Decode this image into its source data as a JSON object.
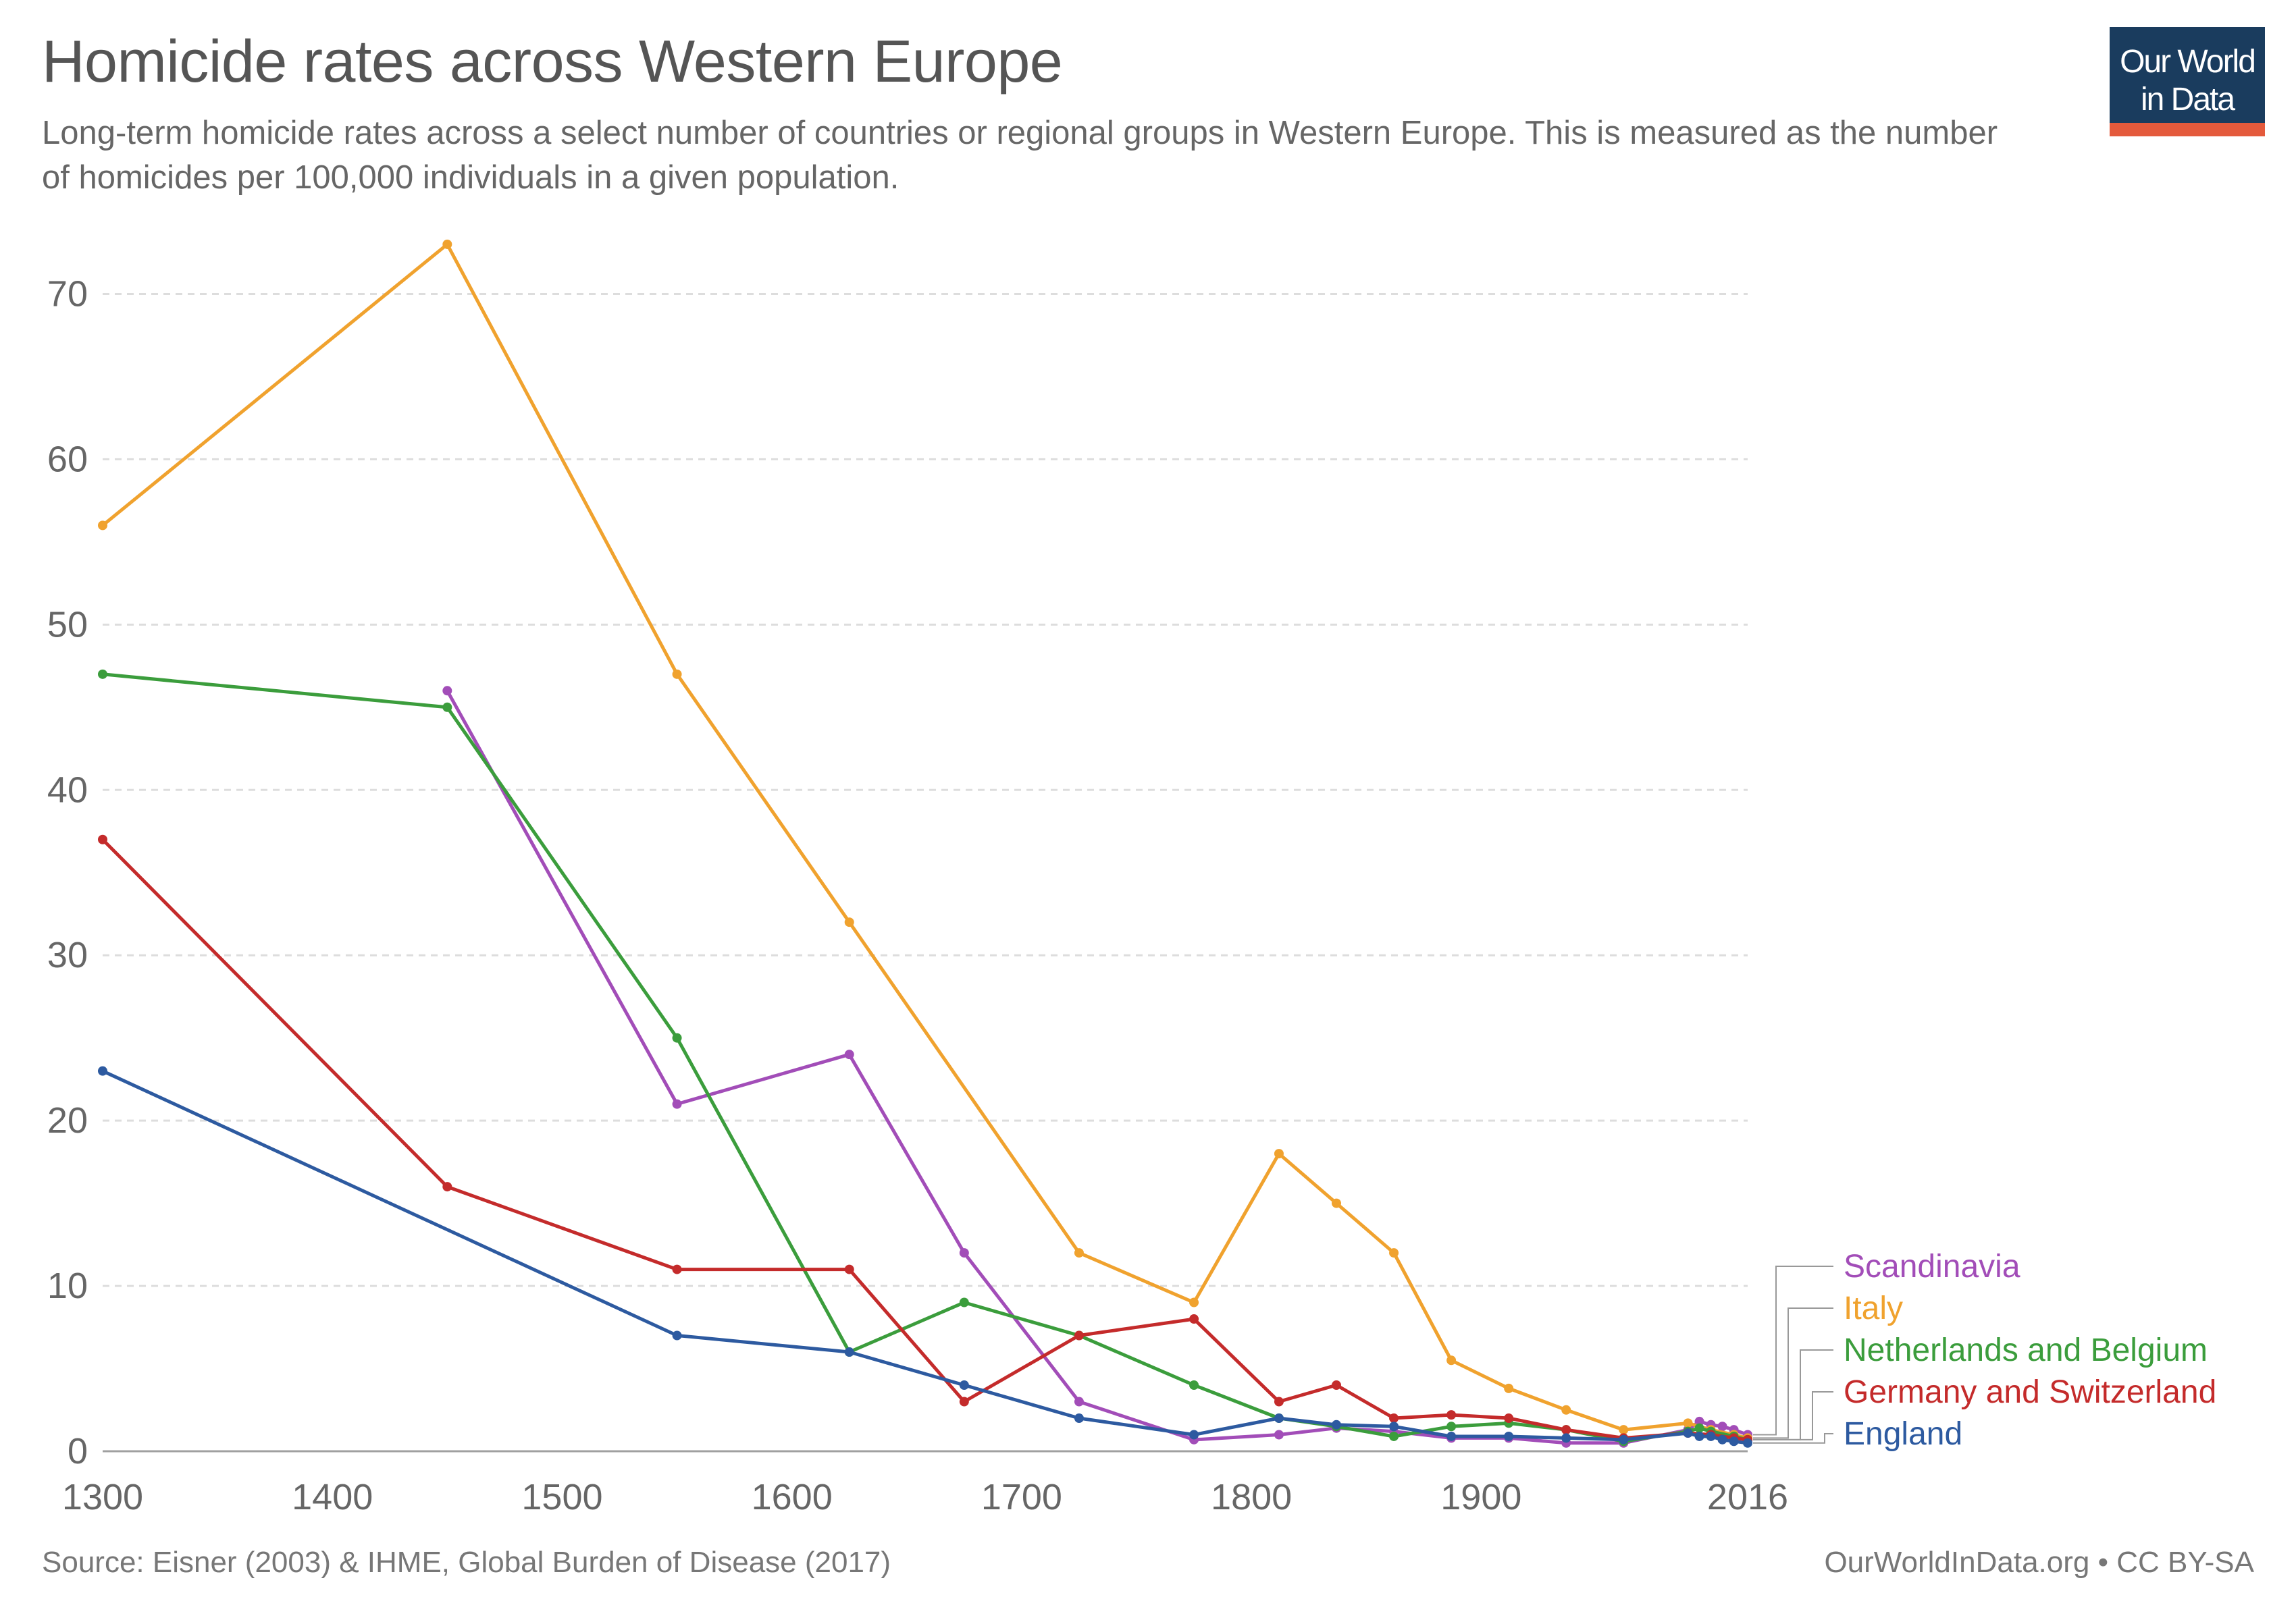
{
  "header": {
    "title": "Homicide rates across Western Europe",
    "subtitle": "Long-term homicide rates across a select number of countries or regional groups in Western Europe. This is measured as the number of homicides per 100,000 individuals in a given population."
  },
  "logo": {
    "line1": "Our World",
    "line2": "in Data",
    "bg_color": "#1a3c5e",
    "bar_color": "#e45a3c"
  },
  "footer": {
    "source": "Source: Eisner (2003) & IHME, Global Burden of Disease (2017)",
    "license": "OurWorldInData.org • CC BY-SA"
  },
  "chart_data": {
    "type": "line",
    "title": "Homicide rates across Western Europe",
    "xlabel": "",
    "ylabel": "",
    "xlim": [
      1300,
      2016
    ],
    "ylim": [
      0,
      75
    ],
    "x_ticks": [
      "1300",
      "1400",
      "1500",
      "1600",
      "1700",
      "1800",
      "1900",
      "2016"
    ],
    "y_ticks": [
      "0",
      "10",
      "20",
      "30",
      "40",
      "50",
      "60",
      "70"
    ],
    "grid": "horizontal dashed",
    "legend_placement": "right, end labels",
    "series": [
      {
        "name": "Scandinavia",
        "color": "#a24db8",
        "points": [
          [
            1450,
            46
          ],
          [
            1550,
            21
          ],
          [
            1625,
            24
          ],
          [
            1675,
            12
          ],
          [
            1725,
            3
          ],
          [
            1775,
            0.7
          ],
          [
            1812,
            1
          ],
          [
            1837,
            1.4
          ],
          [
            1862,
            1.2
          ],
          [
            1887,
            0.8
          ],
          [
            1912,
            0.8
          ],
          [
            1937,
            0.5
          ],
          [
            1962,
            0.5
          ],
          [
            1990,
            1.3
          ],
          [
            1995,
            1.8
          ],
          [
            2000,
            1.6
          ],
          [
            2005,
            1.5
          ],
          [
            2010,
            1.3
          ],
          [
            2016,
            1.0
          ]
        ]
      },
      {
        "name": "Italy",
        "color": "#f0a22e",
        "points": [
          [
            1300,
            56
          ],
          [
            1450,
            73
          ],
          [
            1550,
            47
          ],
          [
            1625,
            32
          ],
          [
            1725,
            12
          ],
          [
            1775,
            9
          ],
          [
            1812,
            18
          ],
          [
            1837,
            15
          ],
          [
            1862,
            12
          ],
          [
            1887,
            5.5
          ],
          [
            1912,
            3.8
          ],
          [
            1937,
            2.5
          ],
          [
            1962,
            1.3
          ],
          [
            1990,
            1.7
          ],
          [
            2000,
            1.3
          ],
          [
            2010,
            1.0
          ],
          [
            2016,
            0.8
          ]
        ]
      },
      {
        "name": "Netherlands and Belgium",
        "color": "#3b9d3c",
        "points": [
          [
            1300,
            47
          ],
          [
            1450,
            45
          ],
          [
            1550,
            25
          ],
          [
            1625,
            6
          ],
          [
            1675,
            9
          ],
          [
            1725,
            7
          ],
          [
            1775,
            4
          ],
          [
            1812,
            2
          ],
          [
            1837,
            1.5
          ],
          [
            1862,
            0.9
          ],
          [
            1887,
            1.5
          ],
          [
            1912,
            1.7
          ],
          [
            1937,
            1.3
          ],
          [
            1962,
            0.6
          ],
          [
            1990,
            1.2
          ],
          [
            1995,
            1.4
          ],
          [
            2000,
            1.2
          ],
          [
            2010,
            0.9
          ],
          [
            2016,
            0.7
          ]
        ]
      },
      {
        "name": "Germany and Switzerland",
        "color": "#c42b2b",
        "points": [
          [
            1300,
            37
          ],
          [
            1450,
            16
          ],
          [
            1550,
            11
          ],
          [
            1625,
            11
          ],
          [
            1675,
            3
          ],
          [
            1725,
            7
          ],
          [
            1775,
            8
          ],
          [
            1812,
            3
          ],
          [
            1837,
            4
          ],
          [
            1862,
            2
          ],
          [
            1887,
            2.2
          ],
          [
            1912,
            2
          ],
          [
            1937,
            1.3
          ],
          [
            1962,
            0.8
          ],
          [
            1990,
            1.1
          ],
          [
            2000,
            1.0
          ],
          [
            2010,
            0.8
          ],
          [
            2016,
            0.7
          ]
        ]
      },
      {
        "name": "England",
        "color": "#2d5aa0",
        "points": [
          [
            1300,
            23
          ],
          [
            1550,
            7
          ],
          [
            1625,
            6
          ],
          [
            1675,
            4
          ],
          [
            1725,
            2
          ],
          [
            1775,
            1
          ],
          [
            1812,
            2
          ],
          [
            1837,
            1.6
          ],
          [
            1862,
            1.5
          ],
          [
            1887,
            0.9
          ],
          [
            1912,
            0.9
          ],
          [
            1937,
            0.8
          ],
          [
            1962,
            0.7
          ],
          [
            1990,
            1.1
          ],
          [
            1995,
            0.9
          ],
          [
            2000,
            0.9
          ],
          [
            2005,
            0.7
          ],
          [
            2010,
            0.6
          ],
          [
            2016,
            0.5
          ]
        ]
      }
    ]
  }
}
